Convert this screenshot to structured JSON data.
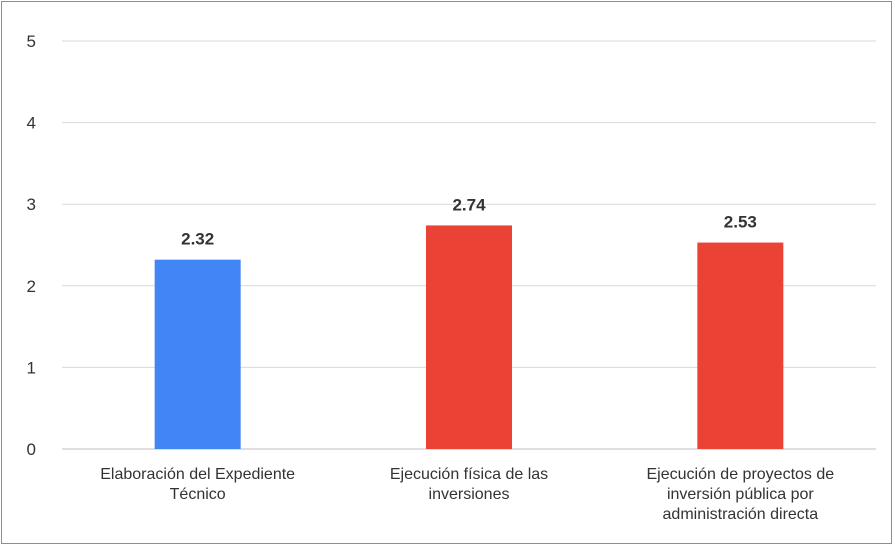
{
  "chart_data": {
    "type": "bar",
    "categories": [
      [
        "Elaboración del Expediente",
        "Técnico"
      ],
      [
        "Ejecución física de las",
        "inversiones"
      ],
      [
        "Ejecución de proyectos de",
        "inversión pública por",
        "administración directa"
      ]
    ],
    "values": [
      2.32,
      2.74,
      2.53
    ],
    "value_labels": [
      "2.32",
      "2.74",
      "2.53"
    ],
    "bar_colors": [
      "#4285f4",
      "#ea4335",
      "#ea4335"
    ],
    "ylim": [
      0,
      5
    ],
    "yticks": [
      0,
      1,
      2,
      3,
      4,
      5
    ],
    "ytick_labels": [
      "0",
      "1",
      "2",
      "3",
      "4",
      "5"
    ],
    "grid": true,
    "legend": false,
    "title": "",
    "xlabel": "",
    "ylabel": ""
  }
}
